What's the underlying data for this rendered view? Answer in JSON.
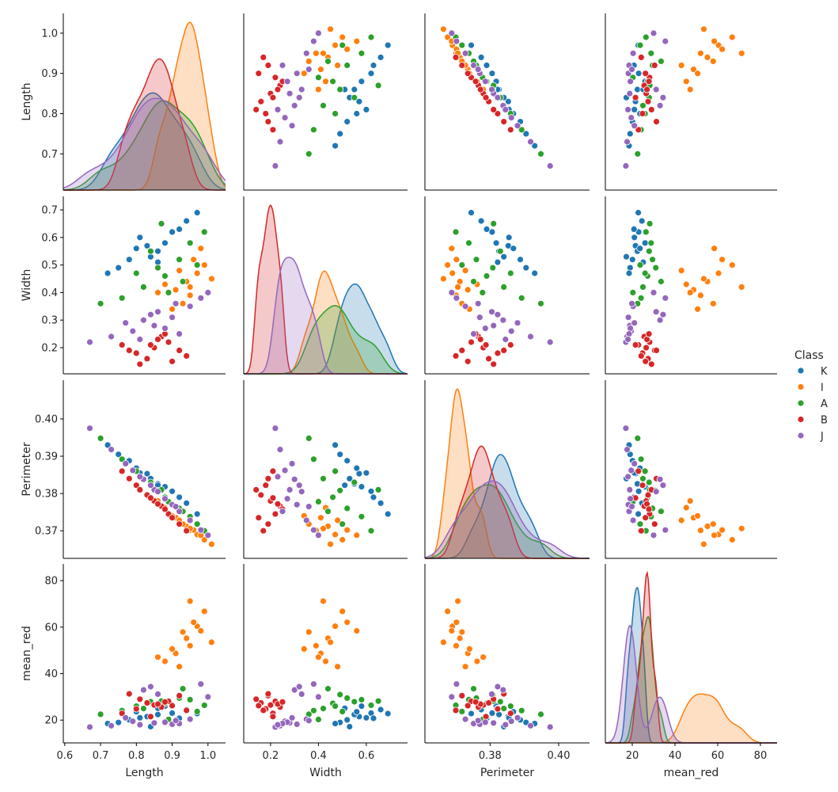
{
  "chart_data": {
    "type": "pairplot",
    "variables": [
      "Length",
      "Width",
      "Perimeter",
      "mean_red"
    ],
    "legend": {
      "title": "Class",
      "placement": "right",
      "classes": [
        "K",
        "I",
        "A",
        "B",
        "J"
      ]
    },
    "colors": {
      "K": "#1f77b4",
      "I": "#ff7f0e",
      "A": "#2ca02c",
      "B": "#d62728",
      "J": "#9467bd"
    },
    "diagonal": "kde",
    "offdiagonal": "scatter",
    "grid": false,
    "axis_limits": {
      "Length": {
        "x": [
          0.596,
          1.049
        ],
        "y": [
          0.61,
          1.049
        ]
      },
      "Width": {
        "x": [
          0.088,
          0.772
        ],
        "y": [
          0.105,
          0.749
        ]
      },
      "Perimeter": {
        "x": [
          0.361,
          0.409
        ],
        "y": [
          0.3626,
          0.4104
        ]
      },
      "mean_red": {
        "x": [
          7.4,
          87.8
        ],
        "y": [
          10.2,
          87.2
        ]
      }
    },
    "x_ticks": {
      "Length": [
        "0.6",
        "0.7",
        "0.8",
        "0.9",
        "1.0"
      ],
      "Width": [
        "0.2",
        "0.4",
        "0.6"
      ],
      "Perimeter": [
        "0.38",
        "0.40"
      ],
      "mean_red": [
        "20",
        "40",
        "60",
        "80"
      ]
    },
    "y_ticks": {
      "Length": [
        "0.7",
        "0.8",
        "0.9",
        "1.0"
      ],
      "Width": [
        "0.2",
        "0.3",
        "0.4",
        "0.5",
        "0.6",
        "0.7"
      ],
      "Perimeter": [
        "0.37",
        "0.38",
        "0.39",
        "0.40"
      ],
      "mean_red": [
        "20",
        "40",
        "60",
        "80"
      ]
    },
    "points": {
      "K": [
        [
          0.83,
          0.57,
          0.3853,
          21.5
        ],
        [
          0.78,
          0.52,
          0.3888,
          20.1
        ],
        [
          0.9,
          0.62,
          0.3806,
          23.0
        ],
        [
          0.86,
          0.55,
          0.3826,
          22.4
        ],
        [
          0.75,
          0.49,
          0.3905,
          19.0
        ],
        [
          0.94,
          0.66,
          0.3774,
          24.5
        ],
        [
          0.81,
          0.6,
          0.3855,
          21.0
        ],
        [
          0.88,
          0.58,
          0.3818,
          26.0
        ],
        [
          0.72,
          0.47,
          0.393,
          18.5
        ],
        [
          0.97,
          0.69,
          0.3745,
          22.8
        ],
        [
          0.84,
          0.53,
          0.384,
          17.2
        ],
        [
          0.8,
          0.56,
          0.3868,
          23.6
        ],
        [
          0.92,
          0.63,
          0.379,
          20.8
        ],
        [
          0.86,
          0.51,
          0.3822,
          25.1
        ]
      ],
      "I": [
        [
          0.94,
          0.44,
          0.3712,
          55.2
        ],
        [
          0.97,
          0.47,
          0.369,
          60.4
        ],
        [
          0.91,
          0.41,
          0.3735,
          48.7
        ],
        [
          0.95,
          0.39,
          0.3701,
          52.0
        ],
        [
          0.99,
          0.5,
          0.3676,
          66.8
        ],
        [
          0.88,
          0.43,
          0.3762,
          45.3
        ],
        [
          0.93,
          0.36,
          0.3718,
          57.9
        ],
        [
          0.96,
          0.52,
          0.3702,
          62.1
        ],
        [
          1.01,
          0.45,
          0.3664,
          53.5
        ],
        [
          0.92,
          0.48,
          0.3728,
          43.0
        ],
        [
          0.95,
          0.42,
          0.3706,
          71.2
        ],
        [
          0.9,
          0.34,
          0.374,
          50.6
        ],
        [
          0.98,
          0.56,
          0.3688,
          58.4
        ],
        [
          0.86,
          0.4,
          0.378,
          47.1
        ]
      ],
      "A": [
        [
          0.88,
          0.46,
          0.379,
          27.2
        ],
        [
          0.82,
          0.42,
          0.384,
          25.0
        ],
        [
          0.92,
          0.52,
          0.376,
          29.5
        ],
        [
          0.76,
          0.38,
          0.3892,
          24.1
        ],
        [
          0.95,
          0.58,
          0.3738,
          28.8
        ],
        [
          0.86,
          0.49,
          0.3808,
          31.0
        ],
        [
          0.7,
          0.36,
          0.3948,
          22.5
        ],
        [
          0.99,
          0.62,
          0.37,
          26.4
        ],
        [
          0.89,
          0.4,
          0.3778,
          20.3
        ],
        [
          0.84,
          0.55,
          0.383,
          27.9
        ],
        [
          0.93,
          0.44,
          0.3752,
          33.5
        ],
        [
          0.8,
          0.47,
          0.386,
          26.0
        ],
        [
          0.97,
          0.5,
          0.3718,
          23.7
        ],
        [
          0.87,
          0.65,
          0.381,
          28.2
        ]
      ],
      "B": [
        [
          0.85,
          0.2,
          0.378,
          26.5
        ],
        [
          0.8,
          0.18,
          0.3822,
          24.8
        ],
        [
          0.89,
          0.22,
          0.3745,
          28.1
        ],
        [
          0.83,
          0.16,
          0.3796,
          27.4
        ],
        [
          0.76,
          0.21,
          0.386,
          22.9
        ],
        [
          0.92,
          0.19,
          0.3718,
          30.5
        ],
        [
          0.87,
          0.24,
          0.3766,
          25.6
        ],
        [
          0.81,
          0.14,
          0.381,
          29.0
        ],
        [
          0.86,
          0.23,
          0.3772,
          26.9
        ],
        [
          0.94,
          0.17,
          0.37,
          24.2
        ],
        [
          0.78,
          0.19,
          0.384,
          31.3
        ],
        [
          0.88,
          0.25,
          0.3758,
          27.8
        ],
        [
          0.84,
          0.21,
          0.3788,
          21.5
        ],
        [
          0.9,
          0.15,
          0.3735,
          26.2
        ]
      ],
      "J": [
        [
          0.85,
          0.28,
          0.381,
          18.8
        ],
        [
          0.79,
          0.26,
          0.3862,
          19.5
        ],
        [
          0.9,
          0.31,
          0.377,
          18.2
        ],
        [
          0.73,
          0.24,
          0.3918,
          17.6
        ],
        [
          0.95,
          0.35,
          0.3728,
          20.4
        ],
        [
          0.82,
          0.3,
          0.3838,
          33.0
        ],
        [
          0.88,
          0.27,
          0.3786,
          19.1
        ],
        [
          0.67,
          0.22,
          0.3975,
          17.0
        ],
        [
          0.98,
          0.38,
          0.3702,
          35.5
        ],
        [
          0.86,
          0.33,
          0.3805,
          31.2
        ],
        [
          0.92,
          0.25,
          0.3752,
          18.5
        ],
        [
          0.77,
          0.29,
          0.388,
          21.0
        ],
        [
          0.84,
          0.32,
          0.3822,
          34.4
        ],
        [
          0.91,
          0.36,
          0.3765,
          19.8
        ],
        [
          1.0,
          0.4,
          0.3688,
          30.0
        ],
        [
          0.81,
          0.23,
          0.3845,
          18.0
        ]
      ]
    }
  }
}
